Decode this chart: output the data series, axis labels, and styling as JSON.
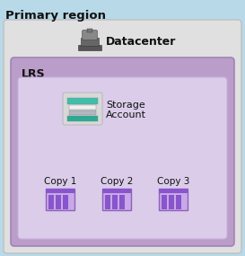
{
  "title": "Primary region",
  "title_fontsize": 9.5,
  "title_fontweight": "bold",
  "bg_color": "#b8d9e8",
  "datacenter_box_facecolor": "#e0e0e0",
  "datacenter_box_edgecolor": "#c0c0c0",
  "datacenter_label": "Datacenter",
  "datacenter_fontsize": 9,
  "lrs_box_facecolor": "#b89ac8",
  "lrs_box_edgecolor": "#a080b8",
  "lrs_label": "LRS",
  "lrs_fontsize": 9,
  "inner_box_facecolor": "#ddd0ec",
  "inner_box_edgecolor": "#c8b0dc",
  "storage_label1": "Storage",
  "storage_label2": "Account",
  "storage_fontsize": 8,
  "teal1": "#3dbfaa",
  "teal2": "#2aaa95",
  "white_bar": "#f0f0f0",
  "gray_bar": "#b0b8c0",
  "storage_bg": "#d8d8d8",
  "copy_labels": [
    "Copy 1",
    "Copy 2",
    "Copy 3"
  ],
  "copy_fontsize": 7.5,
  "copy_box_facecolor": "#c8a8e8",
  "copy_box_edgecolor": "#9060b8",
  "copy_bar_color": "#8855cc",
  "copy_bar_light": "#c8a8e8"
}
